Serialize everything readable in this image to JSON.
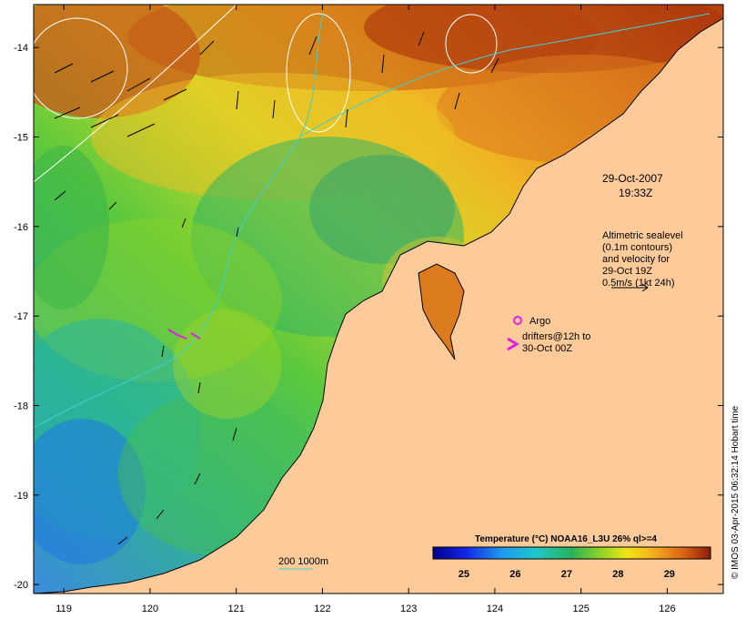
{
  "map": {
    "date_line1": "29-Oct-2007",
    "date_line2": "19:33Z",
    "altimetry_note": [
      "Altimetric sealevel",
      "(0.1m contours)",
      "and velocity for",
      "29-Oct 19Z",
      "0.5m/s (1kt 24h)"
    ],
    "argo_label": "Argo",
    "drifters_note": [
      "drifters@12h to",
      "30-Oct 00Z"
    ],
    "bathymetry_label": "200  1000m",
    "credit": "© IMOS 03-Apr-2015 06:32:14 Hobart time",
    "x_ticks": [
      {
        "value": 119,
        "label": "119"
      },
      {
        "value": 120,
        "label": "120"
      },
      {
        "value": 121,
        "label": "121"
      },
      {
        "value": 122,
        "label": "122"
      },
      {
        "value": 123,
        "label": "123"
      },
      {
        "value": 124,
        "label": "124"
      },
      {
        "value": 125,
        "label": "125"
      },
      {
        "value": 126,
        "label": "126"
      }
    ],
    "y_ticks": [
      {
        "value": -14,
        "label": "-14"
      },
      {
        "value": -15,
        "label": "-15"
      },
      {
        "value": -16,
        "label": "-16"
      },
      {
        "value": -17,
        "label": "-17"
      },
      {
        "value": -18,
        "label": "-18"
      },
      {
        "value": -19,
        "label": "-19"
      },
      {
        "value": -20,
        "label": "-20"
      }
    ],
    "colorbar": {
      "title": "Temperature (°C) NOAA16_L3U 26% ql>=4",
      "min": 24.4,
      "max": 29.8,
      "ticks": [
        {
          "value": 25,
          "label": "25"
        },
        {
          "value": 26,
          "label": "26"
        },
        {
          "value": 27,
          "label": "27"
        },
        {
          "value": 28,
          "label": "28"
        },
        {
          "value": 29,
          "label": "29"
        }
      ]
    },
    "colors": {
      "land": "#fdcb9a",
      "coast": "#000000",
      "contour": "#ffffff",
      "bathymetry": "#40d0d0",
      "argo": "#e020e0",
      "drifter": "#e020e0"
    }
  }
}
